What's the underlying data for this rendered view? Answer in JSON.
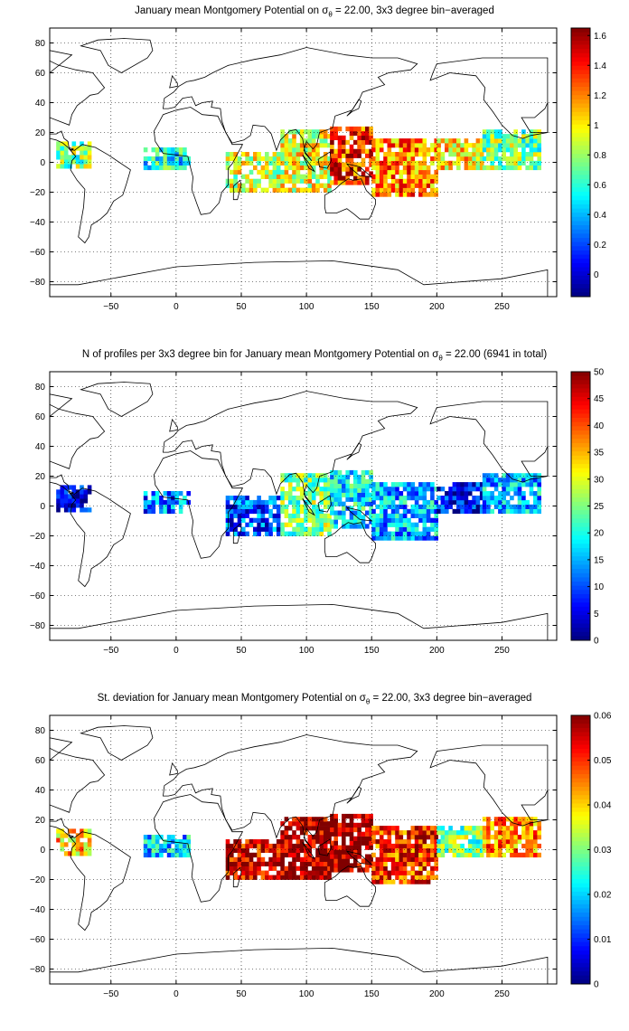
{
  "panels": [
    {
      "title_pre": "January mean Montgomery Potential on σ",
      "title_sub": "θ",
      "title_post": " = 22.00, 3x3 degree bin−averaged",
      "colorbar": {
        "ticks": [
          "1.6",
          "1.4",
          "1.2",
          "1",
          "0.8",
          "0.6",
          "0.4",
          "0.2",
          "0"
        ]
      }
    },
    {
      "title_pre": "N of profiles per 3x3 degree bin for January mean Montgomery Potential on σ",
      "title_sub": "θ",
      "title_post": " = 22.00 (6941 in total)",
      "colorbar": {
        "ticks": [
          "50",
          "45",
          "40",
          "35",
          "30",
          "25",
          "20",
          "15",
          "10",
          "5",
          "0"
        ]
      }
    },
    {
      "title_pre": "St. deviation for January mean Montgomery Potential on σ",
      "title_sub": "θ",
      "title_post": " = 22.00, 3x3 degree bin−averaged",
      "colorbar": {
        "ticks": [
          "0.06",
          "0.05",
          "0.04",
          "0.03",
          "0.02",
          "0.01",
          "0"
        ]
      }
    }
  ],
  "axes": {
    "xticks": [
      "−50",
      "0",
      "50",
      "100",
      "150",
      "200",
      "250"
    ],
    "yticks": [
      "80",
      "60",
      "40",
      "20",
      "0",
      "−20",
      "−40",
      "−60",
      "−80"
    ]
  },
  "chart_data": [
    {
      "type": "heatmap",
      "quantity": "January mean Montgomery Potential",
      "xlim": [
        -97,
        292
      ],
      "ylim": [
        -90,
        90
      ],
      "clim": [
        -0.15,
        1.65
      ],
      "colormap": "jet",
      "bin_size_deg": 3,
      "regions": [
        {
          "lon": [
            -92,
            -65
          ],
          "lat": [
            -4,
            14
          ],
          "value": 0.75
        },
        {
          "lon": [
            -25,
            10
          ],
          "lat": [
            -5,
            10
          ],
          "value": 0.55
        },
        {
          "lon": [
            38,
            80
          ],
          "lat": [
            -20,
            5
          ],
          "value": 0.9
        },
        {
          "lon": [
            80,
            118
          ],
          "lat": [
            -20,
            22
          ],
          "value": 0.95
        },
        {
          "lon": [
            118,
            150
          ],
          "lat": [
            -15,
            22
          ],
          "value": 1.35
        },
        {
          "lon": [
            150,
            200
          ],
          "lat": [
            -23,
            15
          ],
          "value": 1.2
        },
        {
          "lon": [
            200,
            235
          ],
          "lat": [
            -5,
            15
          ],
          "value": 1.0
        },
        {
          "lon": [
            235,
            280
          ],
          "lat": [
            -5,
            20
          ],
          "value": 0.75
        }
      ]
    },
    {
      "type": "heatmap",
      "quantity": "N of profiles per 3x3 degree bin",
      "total_profiles": 6941,
      "xlim": [
        -97,
        292
      ],
      "ylim": [
        -90,
        90
      ],
      "clim": [
        0,
        50
      ],
      "colormap": "jet",
      "regions": [
        {
          "lon": [
            -92,
            -65
          ],
          "lat": [
            -4,
            14
          ],
          "value": 5
        },
        {
          "lon": [
            -25,
            10
          ],
          "lat": [
            -5,
            10
          ],
          "value": 12
        },
        {
          "lon": [
            38,
            80
          ],
          "lat": [
            -20,
            5
          ],
          "value": 10
        },
        {
          "lon": [
            80,
            118
          ],
          "lat": [
            -20,
            22
          ],
          "value": 25
        },
        {
          "lon": [
            118,
            150
          ],
          "lat": [
            -15,
            22
          ],
          "value": 18
        },
        {
          "lon": [
            150,
            200
          ],
          "lat": [
            -23,
            15
          ],
          "value": 15
        },
        {
          "lon": [
            200,
            235
          ],
          "lat": [
            -5,
            15
          ],
          "value": 6
        },
        {
          "lon": [
            235,
            280
          ],
          "lat": [
            -5,
            20
          ],
          "value": 15
        }
      ]
    },
    {
      "type": "heatmap",
      "quantity": "St. deviation of January mean Montgomery Potential",
      "xlim": [
        -97,
        292
      ],
      "ylim": [
        -90,
        90
      ],
      "clim": [
        0,
        0.06
      ],
      "colormap": "jet",
      "regions": [
        {
          "lon": [
            -92,
            -65
          ],
          "lat": [
            -4,
            14
          ],
          "value": 0.04
        },
        {
          "lon": [
            -25,
            10
          ],
          "lat": [
            -5,
            10
          ],
          "value": 0.02
        },
        {
          "lon": [
            38,
            80
          ],
          "lat": [
            -20,
            5
          ],
          "value": 0.055
        },
        {
          "lon": [
            80,
            118
          ],
          "lat": [
            -20,
            22
          ],
          "value": 0.058
        },
        {
          "lon": [
            118,
            150
          ],
          "lat": [
            -15,
            22
          ],
          "value": 0.058
        },
        {
          "lon": [
            150,
            200
          ],
          "lat": [
            -23,
            15
          ],
          "value": 0.05
        },
        {
          "lon": [
            200,
            235
          ],
          "lat": [
            -5,
            15
          ],
          "value": 0.03
        },
        {
          "lon": [
            235,
            280
          ],
          "lat": [
            -5,
            20
          ],
          "value": 0.045
        }
      ]
    }
  ]
}
